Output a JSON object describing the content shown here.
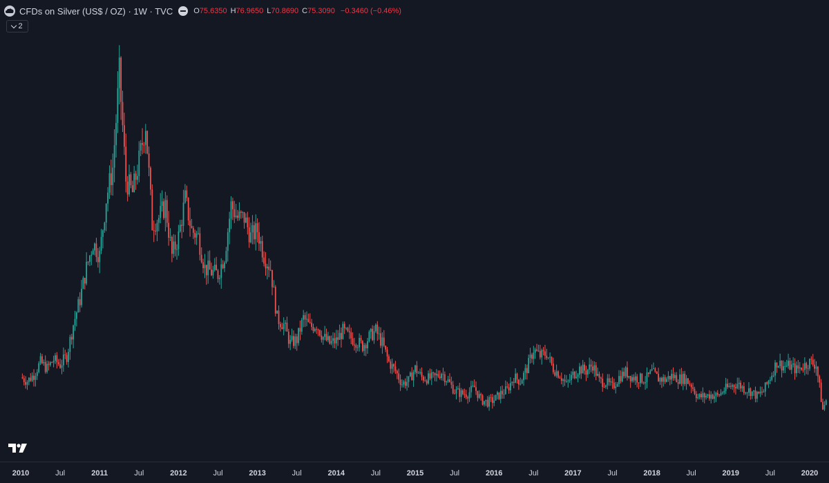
{
  "legend": {
    "symbol_title": "CFDs on Silver (US$ / OZ) · 1W · TVC",
    "open_label": "O",
    "open_value": "75.6350",
    "high_label": "H",
    "high_value": "76.9650",
    "low_label": "L",
    "low_value": "70.8690",
    "close_label": "C",
    "close_value": "75.3090",
    "change": "−0.3460 (−0.46%)",
    "collapse_count": "2"
  },
  "colors": {
    "background": "#141823",
    "up": "#26a69a",
    "down": "#ef5350",
    "text": "#d1d4dc",
    "negative": "#f23645"
  },
  "chart_data": {
    "type": "candlestick",
    "title": "CFDs on Silver (US$ / OZ) · 1W · TVC",
    "interval": "1W",
    "price_axis": "hidden",
    "grid": false,
    "x_ticks": [
      "2010",
      "Jul",
      "2011",
      "Jul",
      "2012",
      "Jul",
      "2013",
      "Jul",
      "2014",
      "Jul",
      "2015",
      "Jul",
      "2016",
      "Jul",
      "2017",
      "Jul",
      "2018",
      "Jul",
      "2019",
      "Jul",
      "2020"
    ],
    "x_range": [
      "2010-01-01",
      "2020-05-01"
    ],
    "series": [
      {
        "values_note": "weekly close, relative price level read from chart",
        "points": [
          [
            "2010-01",
            128
          ],
          [
            "2010-02",
            125
          ],
          [
            "2010-03",
            130
          ],
          [
            "2010-04",
            140
          ],
          [
            "2010-05",
            135
          ],
          [
            "2010-06",
            142
          ],
          [
            "2010-07",
            138
          ],
          [
            "2010-08",
            145
          ],
          [
            "2010-09",
            170
          ],
          [
            "2010-10",
            190
          ],
          [
            "2010-11",
            215
          ],
          [
            "2010-12",
            235
          ],
          [
            "2011-01",
            225
          ],
          [
            "2011-02",
            270
          ],
          [
            "2011-03",
            295
          ],
          [
            "2011-04",
            370
          ],
          [
            "2011-05",
            285
          ],
          [
            "2011-06",
            275
          ],
          [
            "2011-07",
            300
          ],
          [
            "2011-08",
            330
          ],
          [
            "2011-09",
            250
          ],
          [
            "2011-10",
            255
          ],
          [
            "2011-11",
            265
          ],
          [
            "2011-12",
            225
          ],
          [
            "2012-01",
            240
          ],
          [
            "2012-02",
            270
          ],
          [
            "2012-03",
            245
          ],
          [
            "2012-04",
            240
          ],
          [
            "2012-05",
            215
          ],
          [
            "2012-06",
            212
          ],
          [
            "2012-07",
            210
          ],
          [
            "2012-08",
            225
          ],
          [
            "2012-09",
            265
          ],
          [
            "2012-10",
            255
          ],
          [
            "2012-11",
            255
          ],
          [
            "2012-12",
            240
          ],
          [
            "2013-01",
            245
          ],
          [
            "2013-02",
            225
          ],
          [
            "2013-03",
            215
          ],
          [
            "2013-04",
            175
          ],
          [
            "2013-05",
            170
          ],
          [
            "2013-06",
            155
          ],
          [
            "2013-07",
            158
          ],
          [
            "2013-08",
            175
          ],
          [
            "2013-09",
            168
          ],
          [
            "2013-10",
            170
          ],
          [
            "2013-11",
            160
          ],
          [
            "2013-12",
            155
          ],
          [
            "2014-01",
            157
          ],
          [
            "2014-02",
            165
          ],
          [
            "2014-03",
            160
          ],
          [
            "2014-04",
            157
          ],
          [
            "2014-05",
            153
          ],
          [
            "2014-06",
            160
          ],
          [
            "2014-07",
            165
          ],
          [
            "2014-08",
            155
          ],
          [
            "2014-09",
            140
          ],
          [
            "2014-10",
            133
          ],
          [
            "2014-11",
            123
          ],
          [
            "2014-12",
            125
          ],
          [
            "2015-01",
            135
          ],
          [
            "2015-02",
            128
          ],
          [
            "2015-03",
            127
          ],
          [
            "2015-04",
            128
          ],
          [
            "2015-05",
            132
          ],
          [
            "2015-06",
            125
          ],
          [
            "2015-07",
            117
          ],
          [
            "2015-08",
            115
          ],
          [
            "2015-09",
            115
          ],
          [
            "2015-10",
            120
          ],
          [
            "2015-11",
            110
          ],
          [
            "2015-12",
            108
          ],
          [
            "2016-01",
            110
          ],
          [
            "2016-02",
            115
          ],
          [
            "2016-03",
            118
          ],
          [
            "2016-04",
            128
          ],
          [
            "2016-05",
            125
          ],
          [
            "2016-06",
            135
          ],
          [
            "2016-07",
            150
          ],
          [
            "2016-08",
            145
          ],
          [
            "2016-09",
            147
          ],
          [
            "2016-10",
            135
          ],
          [
            "2016-11",
            130
          ],
          [
            "2016-12",
            122
          ],
          [
            "2017-01",
            130
          ],
          [
            "2017-02",
            135
          ],
          [
            "2017-03",
            133
          ],
          [
            "2017-04",
            138
          ],
          [
            "2017-05",
            125
          ],
          [
            "2017-06",
            124
          ],
          [
            "2017-07",
            120
          ],
          [
            "2017-08",
            128
          ],
          [
            "2017-09",
            132
          ],
          [
            "2017-10",
            128
          ],
          [
            "2017-11",
            127
          ],
          [
            "2017-12",
            126
          ],
          [
            "2018-01",
            132
          ],
          [
            "2018-02",
            127
          ],
          [
            "2018-03",
            126
          ],
          [
            "2018-04",
            129
          ],
          [
            "2018-05",
            127
          ],
          [
            "2018-06",
            127
          ],
          [
            "2018-07",
            122
          ],
          [
            "2018-08",
            112
          ],
          [
            "2018-09",
            113
          ],
          [
            "2018-10",
            114
          ],
          [
            "2018-11",
            113
          ],
          [
            "2018-12",
            118
          ],
          [
            "2019-01",
            121
          ],
          [
            "2019-02",
            123
          ],
          [
            "2019-03",
            119
          ],
          [
            "2019-04",
            117
          ],
          [
            "2019-05",
            113
          ],
          [
            "2019-06",
            117
          ],
          [
            "2019-07",
            128
          ],
          [
            "2019-08",
            140
          ],
          [
            "2019-09",
            137
          ],
          [
            "2019-10",
            137
          ],
          [
            "2019-11",
            134
          ],
          [
            "2019-12",
            137
          ],
          [
            "2020-01",
            140
          ],
          [
            "2020-02",
            138
          ],
          [
            "2020-03",
            102
          ],
          [
            "2020-04",
            118
          ]
        ]
      }
    ]
  }
}
